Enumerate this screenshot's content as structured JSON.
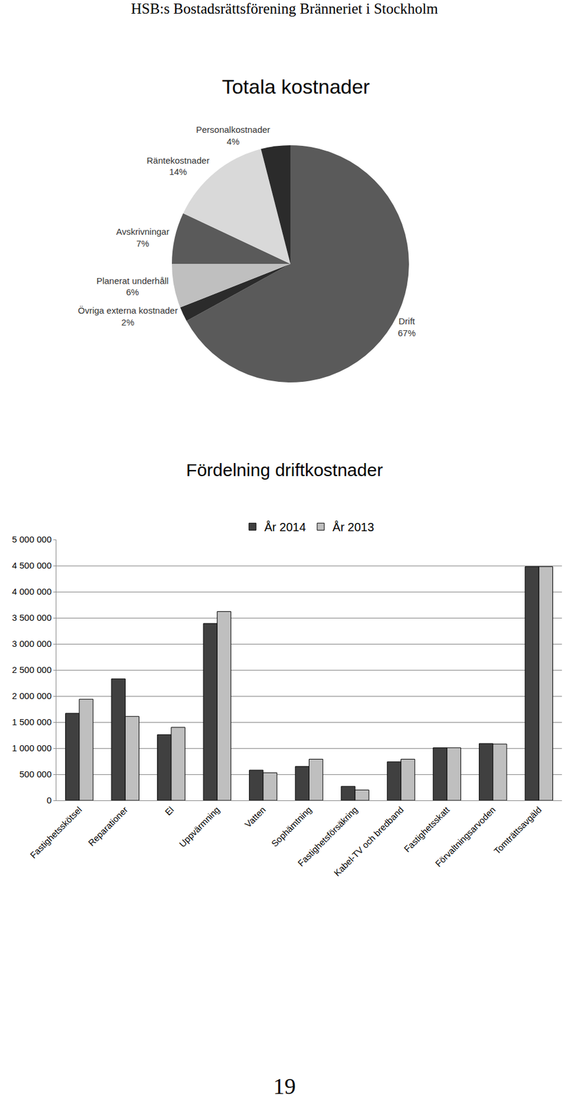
{
  "header": "HSB:s Bostadsrättsförening Bränneriet i Stockholm",
  "page_number": "19",
  "chart_data": [
    {
      "type": "pie",
      "title": "Totala kostnader",
      "categories": [
        "Drift",
        "Övriga externa kostnader",
        "Planerat underhåll",
        "Avskrivningar",
        "Räntekostnader",
        "Personalkostnader"
      ],
      "values": [
        67,
        2,
        6,
        7,
        14,
        4
      ],
      "value_labels": [
        "67%",
        "2%",
        "6%",
        "7%",
        "14%",
        "4%"
      ],
      "colors": [
        "#5a5a5a",
        "#2b2b2b",
        "#bfbfbf",
        "#5a5a5a",
        "#d9d9d9",
        "#2b2b2b"
      ],
      "data_labels": true
    },
    {
      "type": "bar",
      "title": "Fördelning driftkostnader",
      "categories": [
        "Fastighetsskötsel",
        "Reparationer",
        "El",
        "Uppvärmning",
        "Vatten",
        "Sophämtning",
        "Fastighetsförsäkring",
        "Kabel-TV och bredband",
        "Fastighetsskatt",
        "Förvaltningsarvoden",
        "Tomträttsavgäld"
      ],
      "series": [
        {
          "name": "År 2014",
          "color": "#404040",
          "values": [
            1670000,
            2330000,
            1260000,
            3390000,
            580000,
            650000,
            270000,
            740000,
            1010000,
            1090000,
            4480000
          ]
        },
        {
          "name": "År 2013",
          "color": "#bfbfbf",
          "values": [
            1940000,
            1610000,
            1400000,
            3620000,
            530000,
            790000,
            200000,
            790000,
            1010000,
            1080000,
            4480000
          ]
        }
      ],
      "ylim": [
        0,
        5000000
      ],
      "yticks": [
        0,
        {
          "value": 500000,
          "label": "500 000"
        },
        {
          "value": 1000000,
          "label": "1 000 000"
        },
        {
          "value": 1500000,
          "label": "1 500 000"
        },
        {
          "value": 2000000,
          "label": "2 000 000"
        },
        {
          "value": 2500000,
          "label": "2 500 000"
        },
        {
          "value": 3000000,
          "label": "3 000 000"
        },
        {
          "value": 3500000,
          "label": "3 500 000"
        },
        {
          "value": 4000000,
          "label": "4 000 000"
        },
        {
          "value": 4500000,
          "label": "4 500 000"
        },
        {
          "value": 5000000,
          "label": "5 000 000"
        }
      ],
      "grid": true,
      "legend": "top"
    }
  ]
}
